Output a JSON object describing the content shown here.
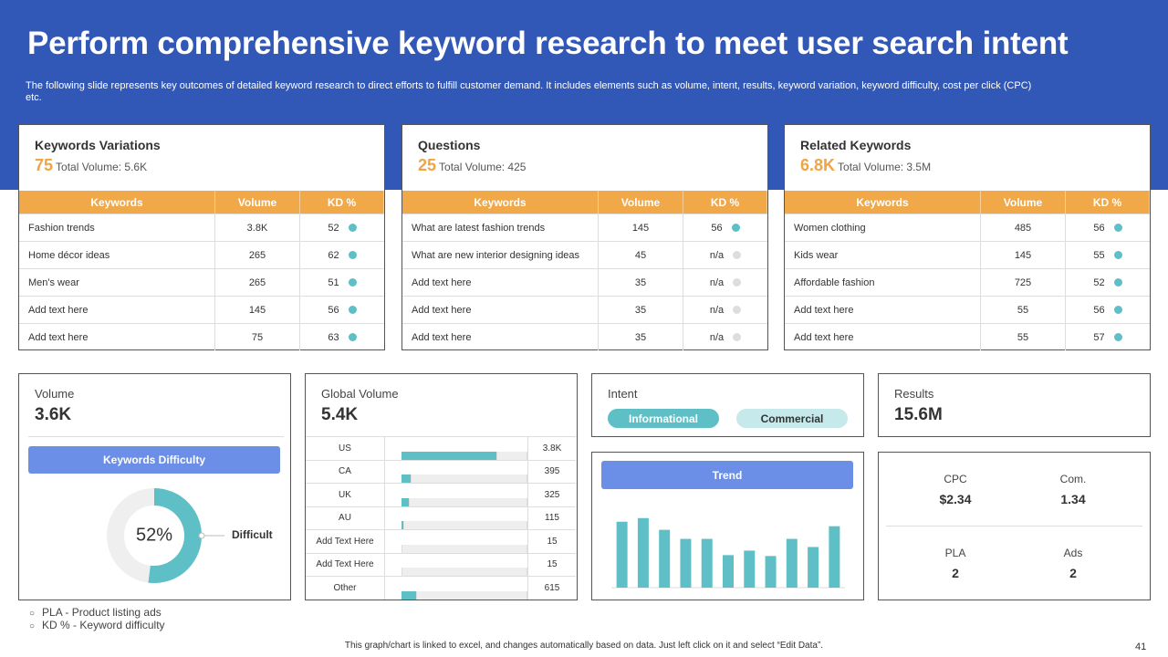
{
  "header": {
    "title": "Perform comprehensive keyword research to meet user search intent",
    "subtitle": "The following slide represents key outcomes of detailed keyword research to direct efforts to fulfill customer demand. It includes elements such as volume, intent, results, keyword variation, keyword difficulty, cost per click (CPC) etc."
  },
  "keyword_tables": [
    {
      "title": "Keywords Variations",
      "count": "75",
      "total": "Total  Volume: 5.6K",
      "columns": [
        "Keywords",
        "Volume",
        "KD %"
      ],
      "rows": [
        [
          "Fashion trends",
          "3.8K",
          52
        ],
        [
          "Home décor ideas",
          265,
          62
        ],
        [
          "Men's wear",
          265,
          51
        ],
        [
          "Add text here",
          145,
          56
        ],
        [
          "Add text here",
          75,
          63
        ]
      ]
    },
    {
      "title": "Questions",
      "count": "25",
      "total": "Total  Volume: 425",
      "columns": [
        "Keywords",
        "Volume",
        "KD %"
      ],
      "rows": [
        [
          "What are latest fashion trends",
          145,
          56
        ],
        [
          "What are new interior designing ideas",
          45,
          "n/a"
        ],
        [
          "Add text here",
          35,
          "n/a"
        ],
        [
          "Add text here",
          35,
          "n/a"
        ],
        [
          "Add text here",
          35,
          "n/a"
        ]
      ]
    },
    {
      "title": "Related Keywords",
      "count": "6.8K",
      "total": "Total  Volume: 3.5M",
      "columns": [
        "Keywords",
        "Volume",
        "KD %"
      ],
      "rows": [
        [
          "Women clothing",
          485,
          56
        ],
        [
          "Kids wear",
          145,
          55
        ],
        [
          "Affordable fashion",
          725,
          52
        ],
        [
          "Add text here",
          55,
          56
        ],
        [
          "Add text here",
          55,
          57
        ]
      ]
    }
  ],
  "volume": {
    "label": "Volume",
    "value": "3.6K"
  },
  "intent": {
    "label": "Intent",
    "tags": [
      "Informational",
      "Commercial"
    ]
  },
  "results": {
    "label": "Results",
    "value": "15.6M"
  },
  "metrics": [
    {
      "label": "CPC",
      "value": "$2.34"
    },
    {
      "label": "Com.",
      "value": "1.34"
    },
    {
      "label": "PLA",
      "value": "2"
    },
    {
      "label": "Ads",
      "value": "2"
    }
  ],
  "notes": [
    "PLA - Product listing ads",
    "KD % - Keyword difficulty"
  ],
  "footer": {
    "text": "This graph/chart is linked to excel, and changes automatically based on data. Just left click on it and select “Edit Data”.",
    "page": "41"
  },
  "chart_data": [
    {
      "type": "donut",
      "title": "Keywords Difficulty",
      "values": [
        52
      ],
      "value_labels": [
        "52%"
      ],
      "annotation": "Difficult",
      "ylim": [
        0,
        100
      ],
      "color": "#5ec0c6"
    },
    {
      "type": "hbar",
      "title": "Global Volume",
      "subtitle": "5.4K",
      "categories": [
        "US",
        "CA",
        "UK",
        "AU",
        "Add Text Here",
        "Add Text Here",
        "Other"
      ],
      "values": [
        3800,
        395,
        325,
        115,
        15,
        15,
        615
      ],
      "value_labels": [
        "3.8K",
        "395",
        "325",
        "115",
        "15",
        "15",
        "615"
      ],
      "xlim": [
        0,
        5000
      ],
      "color": "#5ec0c6"
    },
    {
      "type": "bar",
      "title": "Trend",
      "values": [
        73,
        77,
        64,
        54,
        54,
        36,
        41,
        35,
        54,
        45,
        68
      ],
      "ylim": [
        0,
        100
      ],
      "color": "#5ec0c6"
    }
  ]
}
